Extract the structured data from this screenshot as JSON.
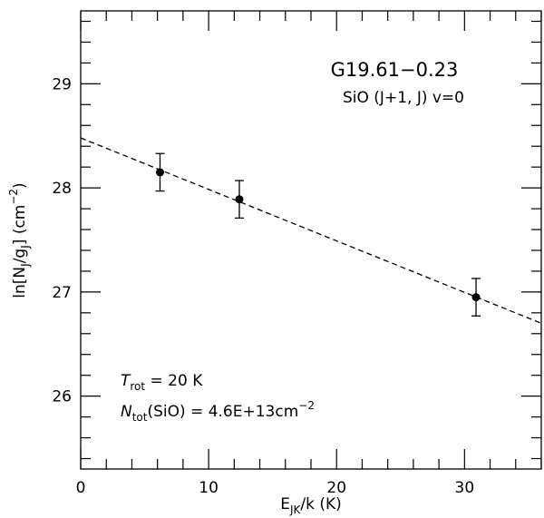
{
  "chart_data": {
    "type": "scatter",
    "title": "G19.61−0.23",
    "subtitle": "SiO (J+1, J) v=0",
    "xlabel": {
      "pre": "E",
      "sub": "JK",
      "post": "/k (K)"
    },
    "ylabel": {
      "p1": "ln[N",
      "s1": "J",
      "p2": "/g",
      "s2": "J",
      "p3": "] (cm",
      "sup": "−2",
      "p4": ")"
    },
    "xlim": [
      0,
      36
    ],
    "ylim": [
      25.3,
      29.7
    ],
    "x_ticks": [
      "0",
      "10",
      "20",
      "30"
    ],
    "y_ticks": [
      "26",
      "27",
      "28",
      "29"
    ],
    "points": [
      {
        "x": 6.2,
        "y": 28.15,
        "err": 0.18
      },
      {
        "x": 12.4,
        "y": 27.89,
        "err": 0.18
      },
      {
        "x": 30.9,
        "y": 26.95,
        "err": 0.18
      }
    ],
    "fit_line": {
      "style": "dashed",
      "x": [
        0,
        36
      ],
      "y": [
        28.48,
        26.7
      ]
    },
    "annotation_trot": {
      "sym": "T",
      "sub": "rot",
      "rest": " = 20 K"
    },
    "annotation_ntot": {
      "sym": "N",
      "sub": "tot",
      "mid": "(SiO) = 4.6E+13cm",
      "sup": "−2"
    }
  }
}
